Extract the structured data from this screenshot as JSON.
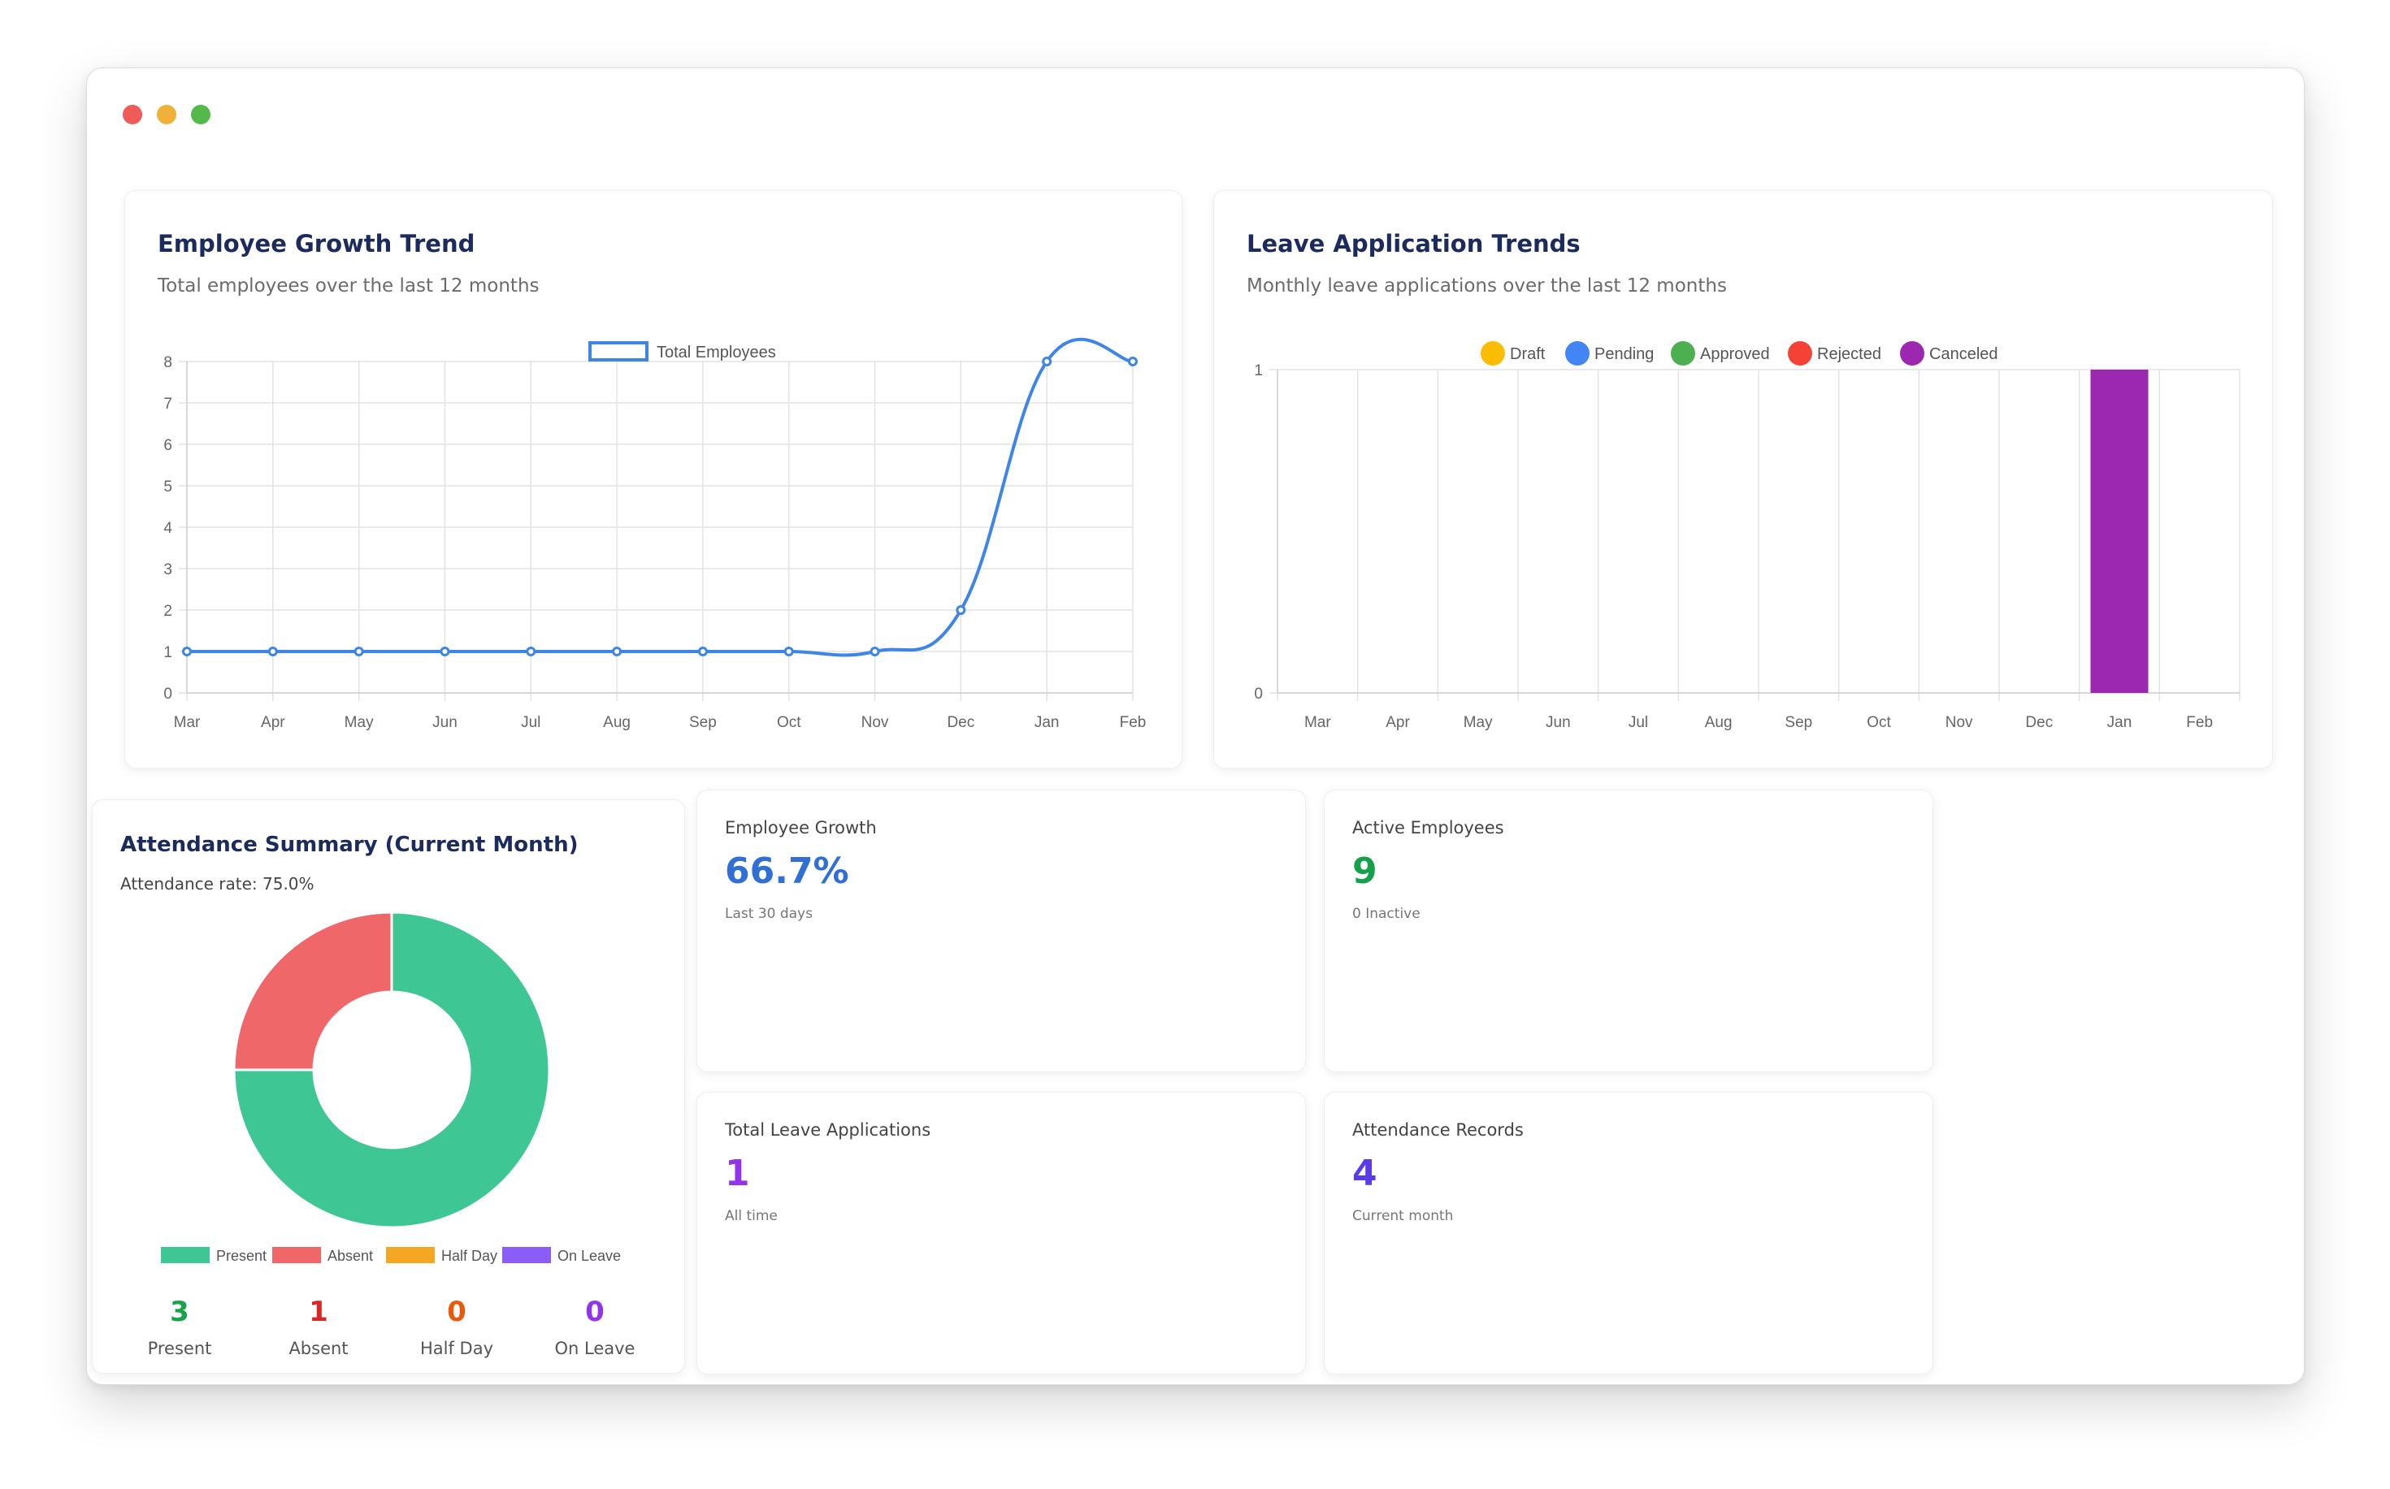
{
  "window": {
    "controls": [
      "close",
      "minimize",
      "zoom"
    ]
  },
  "growth_chart": {
    "title": "Employee Growth Trend",
    "subtitle": "Total employees over the last 12 months",
    "legend_label": "Total Employees",
    "color": "#3d85e6"
  },
  "leave_chart": {
    "title": "Leave Application Trends",
    "subtitle": "Monthly leave applications over the last 12 months",
    "legend": [
      {
        "label": "Draft",
        "color": "#fbbc04"
      },
      {
        "label": "Pending",
        "color": "#4285f4"
      },
      {
        "label": "Approved",
        "color": "#4caf50"
      },
      {
        "label": "Rejected",
        "color": "#f44336"
      },
      {
        "label": "Canceled",
        "color": "#9c27b0"
      }
    ]
  },
  "attendance": {
    "title": "Attendance Summary (Current Month)",
    "rate_text": "Attendance rate: 75.0%",
    "legend": [
      {
        "label": "Present",
        "color": "#3ec795"
      },
      {
        "label": "Absent",
        "color": "#f0676a"
      },
      {
        "label": "Half Day",
        "color": "#f5a623"
      },
      {
        "label": "On Leave",
        "color": "#8b5cf6"
      }
    ],
    "stats": [
      {
        "value": "3",
        "label": "Present",
        "color": "#16a34a"
      },
      {
        "value": "1",
        "label": "Absent",
        "color": "#dc2626"
      },
      {
        "value": "0",
        "label": "Half Day",
        "color": "#ea580c"
      },
      {
        "value": "0",
        "label": "On Leave",
        "color": "#9333ea"
      }
    ]
  },
  "stat_cards": [
    {
      "label": "Employee Growth",
      "value": "66.7%",
      "note": "Last 30 days",
      "color": "#2f6fd6"
    },
    {
      "label": "Active Employees",
      "value": "9",
      "note": "0 Inactive",
      "color": "#15a04a"
    },
    {
      "label": "Total Leave Applications",
      "value": "1",
      "note": "All time",
      "color": "#9333ea"
    },
    {
      "label": "Attendance Records",
      "value": "4",
      "note": "Current month",
      "color": "#5b3be8"
    }
  ],
  "chart_data": [
    {
      "type": "line",
      "title": "Employee Growth Trend",
      "subtitle": "Total employees over the last 12 months",
      "categories": [
        "Mar",
        "Apr",
        "May",
        "Jun",
        "Jul",
        "Aug",
        "Sep",
        "Oct",
        "Nov",
        "Dec",
        "Jan",
        "Feb"
      ],
      "series": [
        {
          "name": "Total Employees",
          "values": [
            1,
            1,
            1,
            1,
            1,
            1,
            1,
            1,
            1,
            2,
            8,
            8
          ]
        }
      ],
      "yticks": [
        0,
        1,
        2,
        3,
        4,
        5,
        6,
        7,
        8
      ],
      "ylim": [
        0,
        8
      ],
      "grid": true,
      "legend": "top"
    },
    {
      "type": "bar",
      "title": "Leave Application Trends",
      "subtitle": "Monthly leave applications over the last 12 months",
      "categories": [
        "Mar",
        "Apr",
        "May",
        "Jun",
        "Jul",
        "Aug",
        "Sep",
        "Oct",
        "Nov",
        "Dec",
        "Jan",
        "Feb"
      ],
      "series": [
        {
          "name": "Draft",
          "values": [
            0,
            0,
            0,
            0,
            0,
            0,
            0,
            0,
            0,
            0,
            0,
            0
          ]
        },
        {
          "name": "Pending",
          "values": [
            0,
            0,
            0,
            0,
            0,
            0,
            0,
            0,
            0,
            0,
            0,
            0
          ]
        },
        {
          "name": "Approved",
          "values": [
            0,
            0,
            0,
            0,
            0,
            0,
            0,
            0,
            0,
            0,
            0,
            0
          ]
        },
        {
          "name": "Rejected",
          "values": [
            0,
            0,
            0,
            0,
            0,
            0,
            0,
            0,
            0,
            0,
            0,
            0
          ]
        },
        {
          "name": "Canceled",
          "values": [
            0,
            0,
            0,
            0,
            0,
            0,
            0,
            0,
            0,
            0,
            1,
            0
          ]
        }
      ],
      "stacked": true,
      "yticks": [
        0,
        1
      ],
      "ylim": [
        0,
        1
      ],
      "grid": true,
      "legend": "top"
    },
    {
      "type": "pie",
      "title": "Attendance Summary (Current Month)",
      "donut": true,
      "categories": [
        "Present",
        "Absent",
        "Half Day",
        "On Leave"
      ],
      "values": [
        3,
        1,
        0,
        0
      ],
      "legend": "bottom"
    }
  ]
}
